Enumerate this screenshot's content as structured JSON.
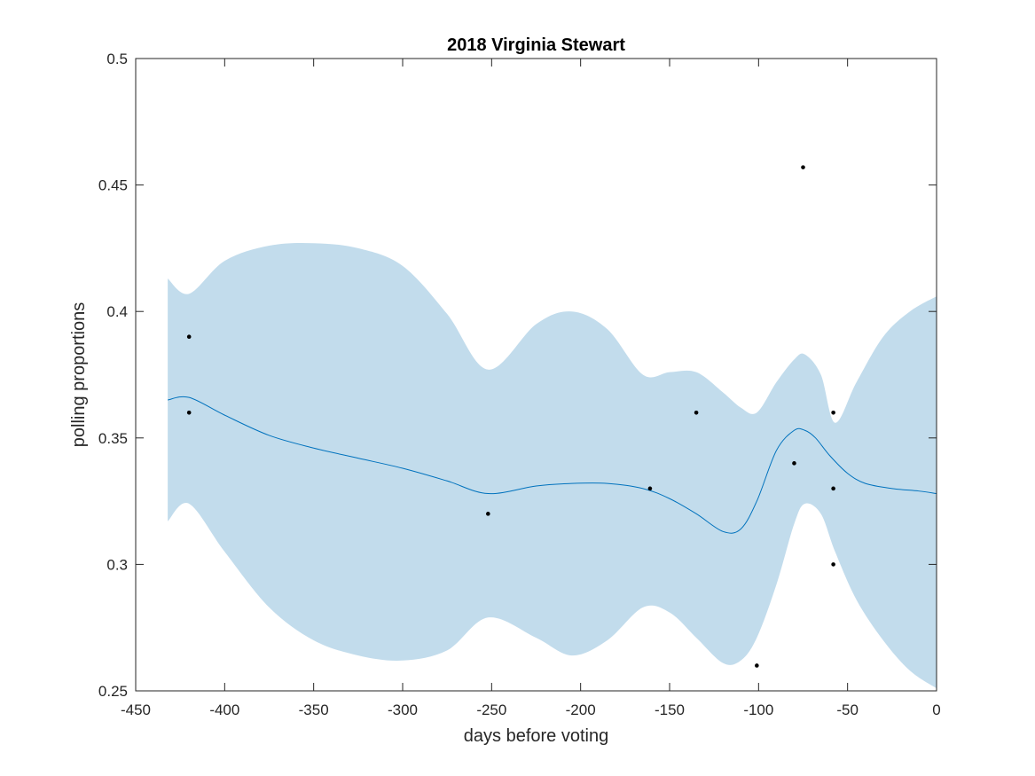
{
  "chart_data": {
    "type": "line",
    "title": "2018 Virginia Stewart",
    "xlabel": "days before voting",
    "ylabel": "polling proportions",
    "xlim": [
      -450,
      0
    ],
    "ylim": [
      0.25,
      0.5
    ],
    "xticks": [
      -450,
      -400,
      -350,
      -300,
      -250,
      -200,
      -150,
      -100,
      -50,
      0
    ],
    "yticks": [
      0.25,
      0.3,
      0.35,
      0.4,
      0.45,
      0.5
    ],
    "xtick_labels": [
      "-450",
      "-400",
      "-350",
      "-300",
      "-250",
      "-200",
      "-150",
      "-100",
      "-50",
      "0"
    ],
    "ytick_labels": [
      "0.25",
      "0.3",
      "0.35",
      "0.4",
      "0.45",
      "0.5"
    ],
    "grid": false,
    "colors": {
      "band": "#c2dcec",
      "mean": "#0072bd",
      "points": "#000000",
      "axes": "#262626"
    },
    "band": {
      "x": [
        -432,
        -420,
        -400,
        -375,
        -350,
        -325,
        -300,
        -275,
        -252,
        -225,
        -205,
        -185,
        -165,
        -150,
        -135,
        -120,
        -110,
        -101,
        -90,
        -80,
        -74,
        -65,
        -57,
        -45,
        -30,
        -15,
        0
      ],
      "upper": [
        0.413,
        0.407,
        0.42,
        0.426,
        0.427,
        0.425,
        0.418,
        0.399,
        0.377,
        0.395,
        0.4,
        0.393,
        0.375,
        0.376,
        0.376,
        0.368,
        0.362,
        0.36,
        0.372,
        0.381,
        0.383,
        0.375,
        0.356,
        0.372,
        0.39,
        0.4,
        0.406
      ],
      "lower": [
        0.317,
        0.324,
        0.305,
        0.283,
        0.27,
        0.264,
        0.262,
        0.266,
        0.279,
        0.271,
        0.264,
        0.27,
        0.283,
        0.281,
        0.271,
        0.261,
        0.262,
        0.271,
        0.292,
        0.316,
        0.324,
        0.32,
        0.305,
        0.286,
        0.27,
        0.258,
        0.251
      ]
    },
    "series": [
      {
        "x": [
          -432,
          -420,
          -400,
          -375,
          -350,
          -325,
          -300,
          -275,
          -252,
          -225,
          -205,
          -185,
          -165,
          -150,
          -135,
          -120,
          -110,
          -101,
          -90,
          -80,
          -74,
          -68,
          -60,
          -50,
          -40,
          -25,
          -10,
          0
        ],
        "values": [
          0.365,
          0.366,
          0.359,
          0.351,
          0.346,
          0.342,
          0.338,
          0.333,
          0.328,
          0.331,
          0.332,
          0.332,
          0.33,
          0.326,
          0.32,
          0.313,
          0.314,
          0.325,
          0.345,
          0.353,
          0.353,
          0.35,
          0.343,
          0.336,
          0.332,
          0.33,
          0.329,
          0.328
        ]
      }
    ],
    "points": {
      "x": [
        -420,
        -420,
        -252,
        -161,
        -135,
        -101,
        -80,
        -75,
        -58,
        -58,
        -58
      ],
      "y": [
        0.39,
        0.36,
        0.32,
        0.33,
        0.36,
        0.26,
        0.34,
        0.457,
        0.36,
        0.33,
        0.3
      ]
    }
  }
}
